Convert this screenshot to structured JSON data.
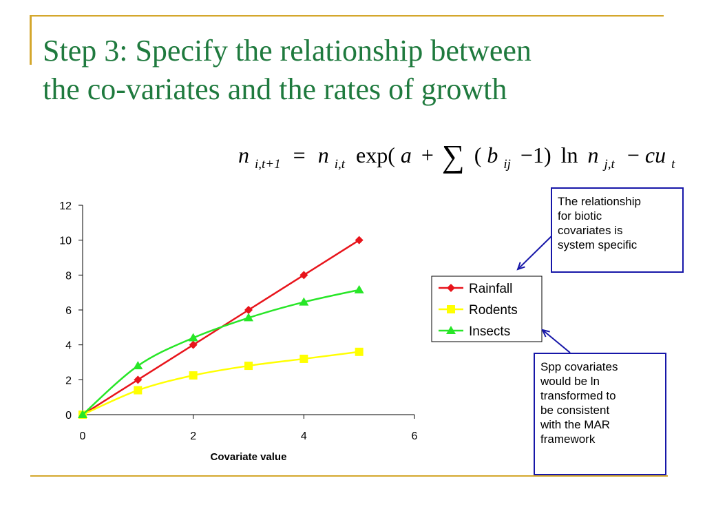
{
  "slide": {
    "title_line1": "Step 3: Specify the relationship between",
    "title_line2": "the co-variates and the rates of growth",
    "equation": {
      "lhs_var": "n",
      "lhs_sub": "i,t+1",
      "equals": "=",
      "rhs_var": "n",
      "rhs_sub": "i,t",
      "exp": "exp(",
      "a": "a",
      "plus": "+",
      "sum": "∑",
      "open": "(",
      "b": "b",
      "b_sub": "ij",
      "minus_one": "−1)",
      "ln": "ln",
      "nj": "n",
      "nj_sub": "j,t",
      "minus": "−",
      "cu": "cu",
      "t_sub": "t",
      "close": ")"
    },
    "callouts": [
      {
        "lines": [
          "The relationship",
          "for biotic",
          "covariates is",
          "system specific"
        ]
      },
      {
        "lines": [
          "Spp covariates",
          "would be ln",
          "transformed to",
          "be consistent",
          "with the MAR",
          "framework"
        ]
      }
    ],
    "colors": {
      "title": "#1F7A3E",
      "rule": "#D4A72C",
      "callout_border": "#1616A8"
    }
  },
  "chart_data": {
    "type": "line",
    "title": "",
    "xlabel": "Covariate value",
    "ylabel": "",
    "xlim": [
      0,
      6
    ],
    "ylim": [
      0,
      12
    ],
    "x_ticks": [
      0,
      2,
      4,
      6
    ],
    "y_ticks": [
      0,
      2,
      4,
      6,
      8,
      10,
      12
    ],
    "grid": false,
    "legend_position": "right",
    "series": [
      {
        "name": "Rainfall",
        "color": "#E8141B",
        "marker": "diamond",
        "x": [
          0,
          1,
          2,
          3,
          4,
          5
        ],
        "y": [
          0,
          2,
          4,
          6,
          8,
          10
        ]
      },
      {
        "name": "Rodents",
        "color": "#FFFF00",
        "marker": "square",
        "x": [
          0,
          1,
          2,
          3,
          4,
          5
        ],
        "y": [
          0,
          1.4,
          2.25,
          2.8,
          3.2,
          3.6
        ]
      },
      {
        "name": "Insects",
        "color": "#27E627",
        "marker": "triangle",
        "x": [
          0,
          1,
          2,
          3,
          4,
          5
        ],
        "y": [
          0,
          2.8,
          4.4,
          5.55,
          6.45,
          7.15
        ]
      }
    ]
  }
}
